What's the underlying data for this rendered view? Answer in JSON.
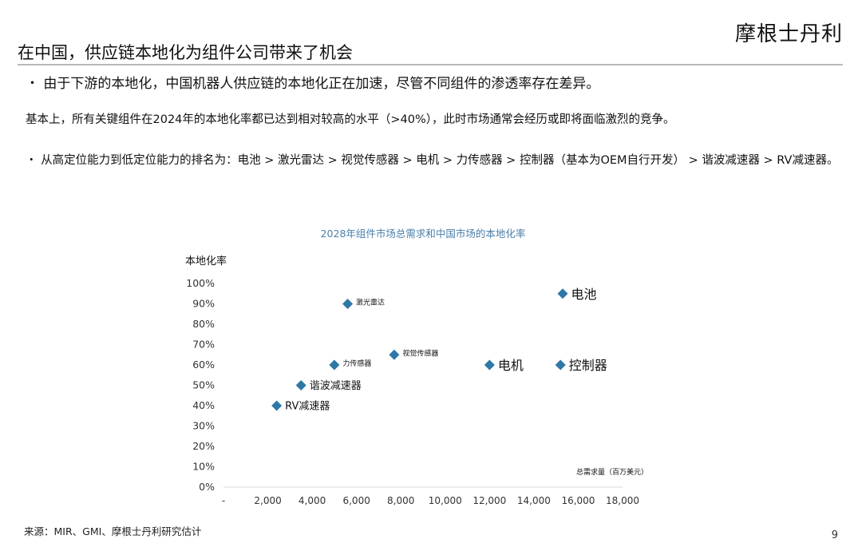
{
  "header": {
    "brand": "摩根士丹利",
    "title": "在中国，供应链本地化为组件公司带来了机会"
  },
  "body": {
    "bullet1": "・ 由于下游的本地化，中国机器人供应链的本地化正在加速，尽管不同组件的渗透率存在差异。",
    "para": "基本上，所有关键组件在2024年的本地化率都已达到相对较高的水平（>40%），此时市场通常会经历或即将面临激烈的竞争。",
    "bullet2": "・ 从高定位能力到低定位能力的排名为：电池 > 激光雷达 > 视觉传感器 > 电机 > 力传感器 > 控制器（基本为OEM自行开发） > 谐波减速器 > RV减速器。"
  },
  "footer": {
    "source": "来源：MIR、GMI、摩根士丹利研究估计",
    "page": "9"
  },
  "colors": {
    "marker": "#2e78a8",
    "chart_title": "#4a7ea8",
    "grid": "#d9d9d9"
  },
  "chart_data": {
    "type": "scatter",
    "title": "2028年组件市场总需求和中国市场的本地化率",
    "ylabel": "本地化率",
    "xlabel": "总需求量（百万美元）",
    "xlim": [
      0,
      18000
    ],
    "ylim": [
      0,
      100
    ],
    "x_ticks": [
      "-",
      "2,000",
      "4,000",
      "6,000",
      "8,000",
      "10,000",
      "12,000",
      "14,000",
      "16,000",
      "18,000"
    ],
    "y_ticks": [
      "0%",
      "10%",
      "20%",
      "30%",
      "40%",
      "50%",
      "60%",
      "70%",
      "80%",
      "90%",
      "100%"
    ],
    "grid": false,
    "points": [
      {
        "label": "电池",
        "x": 15300,
        "y": 95,
        "size": "large"
      },
      {
        "label": "激光雷达",
        "x": 5600,
        "y": 90,
        "size": "small"
      },
      {
        "label": "视觉传感器",
        "x": 7700,
        "y": 65,
        "size": "small"
      },
      {
        "label": "力传感器",
        "x": 5000,
        "y": 60,
        "size": "small"
      },
      {
        "label": "电机",
        "x": 12000,
        "y": 60,
        "size": "large"
      },
      {
        "label": "控制器",
        "x": 15200,
        "y": 60,
        "size": "large"
      },
      {
        "label": "谐波减速器",
        "x": 3500,
        "y": 50,
        "size": "medium"
      },
      {
        "label": "RV减速器",
        "x": 2400,
        "y": 40,
        "size": "medium"
      }
    ]
  }
}
